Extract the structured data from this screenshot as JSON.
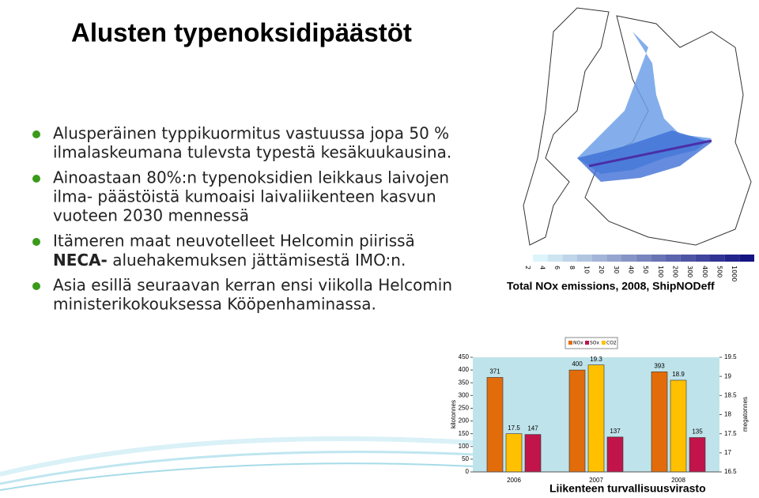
{
  "slide": {
    "title": "Alusten typenoksidipäästöt",
    "bullets": [
      {
        "lines": [
          "Alusperäinen typpikuormitus vastuussa jopa 50 %",
          "ilmalaskeumana tulevsta typestä kesäkuukausina."
        ]
      },
      {
        "lines": [
          "Ainoastaan 80%:n typenoksidien leikkaus laivojen",
          "ilma- päästöistä kumoaisi laivaliikenteen kasvun",
          "vuoteen 2030 mennessä"
        ]
      },
      {
        "lines": [
          "Itämeren maat neuvotelleet Helcomin piirissä"
        ],
        "bold": "NECA-",
        "rest": " aluehakemuksen jättämisestä IMO:n."
      },
      {
        "lines": [
          "Asia esillä seuraavan kerran ensi viikolla Helcomin",
          "ministerikokouksessa Kööpenhaminassa."
        ]
      }
    ],
    "footer": "Liikenteen turvallisuusvirasto"
  },
  "map": {
    "caption": "Total NOx emissions, 2008, ShipNODeff",
    "scale_labels": [
      "2",
      "4",
      "6",
      "8",
      "10",
      "20",
      "30",
      "40",
      "50",
      "100",
      "200",
      "300",
      "400",
      "500",
      "1000"
    ]
  },
  "chart_data": {
    "type": "bar",
    "categories": [
      "2006",
      "2007",
      "2008"
    ],
    "y_label": "kilotonnes",
    "y2_label": "megatonnes",
    "series": [
      {
        "name": "NOx",
        "color": "#e36c0a",
        "values": [
          371,
          400,
          393
        ]
      },
      {
        "name": "SOx",
        "color": "#c0144b",
        "values": [
          147,
          137,
          135
        ]
      },
      {
        "name": "CO2",
        "color": "#ffc000",
        "values": [
          17.5,
          19.3,
          18.9
        ],
        "axis": "y2"
      }
    ],
    "ylim": [
      0,
      450
    ],
    "yticks": [
      0,
      50,
      100,
      150,
      200,
      250,
      300,
      350,
      400,
      450
    ],
    "y2lim": [
      16.5,
      19.5
    ],
    "y2ticks": [
      16.5,
      17,
      17.5,
      18,
      18.5,
      19,
      19.5
    ]
  }
}
